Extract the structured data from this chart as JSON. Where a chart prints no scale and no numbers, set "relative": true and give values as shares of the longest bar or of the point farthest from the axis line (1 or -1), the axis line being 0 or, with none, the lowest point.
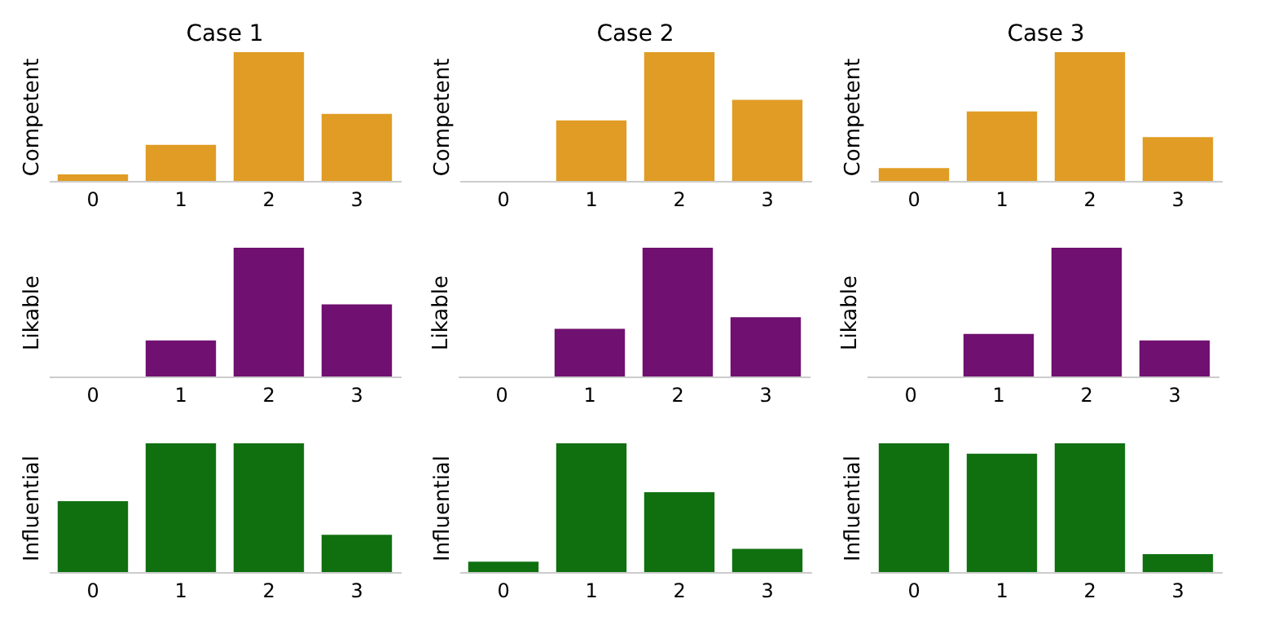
{
  "chart_data": [
    {
      "type": "bar",
      "title": "Case 1",
      "ylabel": "Competent",
      "categories": [
        "0",
        "1",
        "2",
        "3"
      ],
      "values": [
        0.05,
        0.28,
        1,
        0.52
      ],
      "color": "#e09c24",
      "relative": true,
      "tick_labels": "x"
    },
    {
      "type": "bar",
      "title": "Case 2",
      "ylabel": "Competent",
      "categories": [
        "0",
        "1",
        "2",
        "3"
      ],
      "values": [
        0,
        0.47,
        1,
        0.63
      ],
      "color": "#e09c24",
      "relative": true,
      "tick_labels": "x"
    },
    {
      "type": "bar",
      "title": "Case 3",
      "ylabel": "Competent",
      "categories": [
        "0",
        "1",
        "2",
        "3"
      ],
      "values": [
        0.1,
        0.54,
        1,
        0.34
      ],
      "color": "#e09c24",
      "relative": true,
      "tick_labels": "x"
    },
    {
      "type": "bar",
      "ylabel": "Likable",
      "categories": [
        "0",
        "1",
        "2",
        "3"
      ],
      "values": [
        0,
        0.28,
        1,
        0.56
      ],
      "color": "#701070",
      "relative": true,
      "tick_labels": "x"
    },
    {
      "type": "bar",
      "ylabel": "Likable",
      "categories": [
        "0",
        "1",
        "2",
        "3"
      ],
      "values": [
        0,
        0.37,
        1,
        0.46
      ],
      "color": "#701070",
      "relative": true,
      "tick_labels": "x"
    },
    {
      "type": "bar",
      "ylabel": "Likable",
      "categories": [
        "0",
        "1",
        "2",
        "3"
      ],
      "values": [
        0,
        0.33,
        1,
        0.28
      ],
      "color": "#701070",
      "relative": true,
      "tick_labels": "x"
    },
    {
      "type": "bar",
      "ylabel": "Influential",
      "categories": [
        "0",
        "1",
        "2",
        "3"
      ],
      "values": [
        0.55,
        1,
        1,
        0.29
      ],
      "color": "#107010",
      "relative": true,
      "tick_labels": "x"
    },
    {
      "type": "bar",
      "ylabel": "Influential",
      "categories": [
        "0",
        "1",
        "2",
        "3"
      ],
      "values": [
        0.08,
        1,
        0.62,
        0.18
      ],
      "color": "#107010",
      "relative": true,
      "tick_labels": "x"
    },
    {
      "type": "bar",
      "ylabel": "Influential",
      "categories": [
        "0",
        "1",
        "2",
        "3"
      ],
      "values": [
        1,
        0.92,
        1,
        0.14
      ],
      "color": "#107010",
      "relative": true,
      "tick_labels": "x"
    }
  ]
}
